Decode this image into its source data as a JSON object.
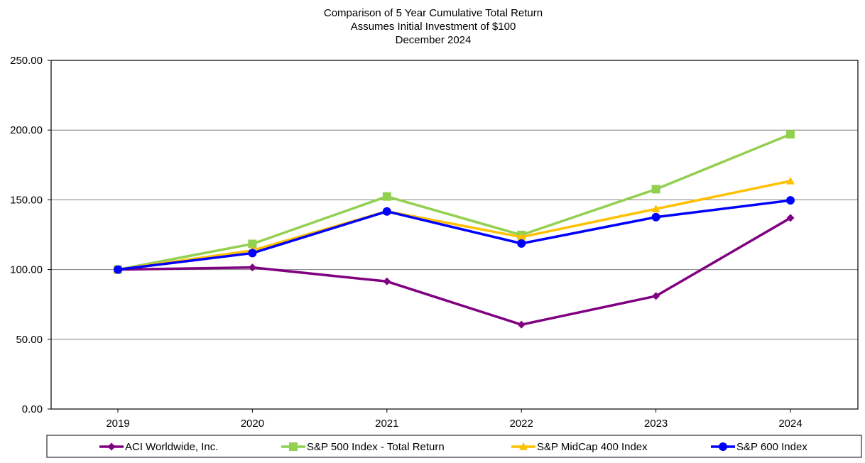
{
  "chart_data": {
    "type": "line",
    "title": [
      "Comparison of 5 Year Cumulative Total Return",
      "Assumes Initial Investment of $100",
      "December 2024"
    ],
    "xlabel": "",
    "ylabel": "",
    "categories": [
      "2019",
      "2020",
      "2021",
      "2022",
      "2023",
      "2024"
    ],
    "yticks": [
      "0.00",
      "50.00",
      "100.00",
      "150.00",
      "200.00",
      "250.00"
    ],
    "ylim": [
      0,
      250
    ],
    "grid": true,
    "legend_position": "bottom",
    "series": [
      {
        "name": "ACI Worldwide, Inc.",
        "color": "#800080",
        "marker": "diamond",
        "values": [
          100.0,
          101.5,
          91.5,
          60.5,
          81.0,
          137.0
        ]
      },
      {
        "name": "S&P 500 Index - Total Return",
        "color": "#92D050",
        "marker": "square",
        "values": [
          100.0,
          118.4,
          152.4,
          124.8,
          157.6,
          197.0
        ]
      },
      {
        "name": "S&P MidCap 400 Index",
        "color": "#FFC000",
        "marker": "triangle",
        "values": [
          100.0,
          113.7,
          141.8,
          123.3,
          143.5,
          163.5
        ]
      },
      {
        "name": "S&P 600 Index",
        "color": "#0000FF",
        "marker": "circle",
        "values": [
          100.0,
          111.8,
          141.7,
          118.7,
          137.6,
          149.6
        ]
      }
    ]
  }
}
